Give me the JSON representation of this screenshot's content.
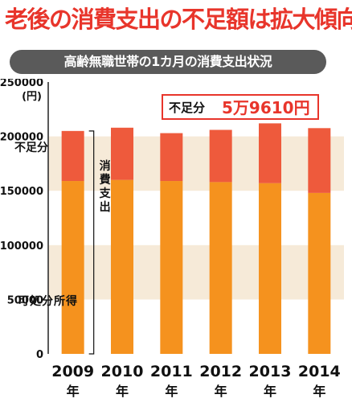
{
  "headline": "老後の消費支出の不足額は拡大傾向!",
  "banner": "高齢無職世帯の1カ月の消費支出状況",
  "colors": {
    "shortfall": "#ee5a3c",
    "disposable": "#f5921e",
    "band": "#f6ead8",
    "headline": "#e8352b"
  },
  "chart_data": {
    "type": "bar",
    "stacked": true,
    "categories": [
      "2009",
      "2010",
      "2011",
      "2012",
      "2013",
      "2014"
    ],
    "category_suffix": "年",
    "series": [
      {
        "name": "可処分所得",
        "values": [
          159000,
          160000,
          159000,
          158000,
          157000,
          148000
        ]
      },
      {
        "name": "不足分",
        "values": [
          46000,
          48000,
          44000,
          48000,
          55000,
          59610
        ]
      }
    ],
    "total_label": "消費支出",
    "ylabel": "(円)",
    "ylim": [
      0,
      250000
    ],
    "yticks": [
      0,
      50000,
      100000,
      150000,
      200000,
      250000
    ],
    "grid": "bands",
    "annotation": {
      "label": "不足分",
      "value": "5万9610円"
    }
  }
}
